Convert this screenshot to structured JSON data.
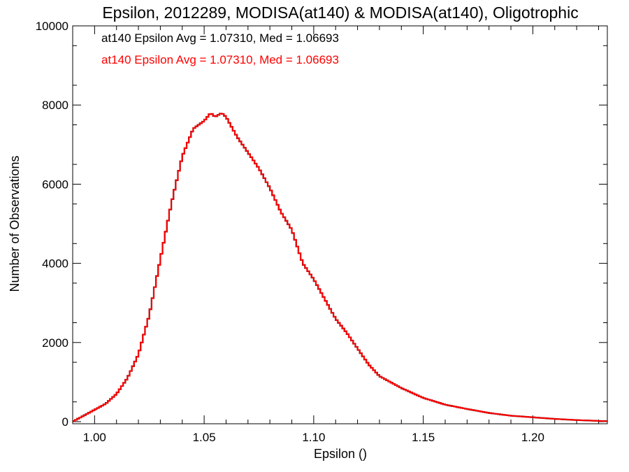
{
  "chart_data": {
    "type": "line",
    "step": true,
    "title": "Epsilon, 2012289, MODISA(at140) & MODISA(at140), Oligotrophic",
    "xlabel": "Epsilon ()",
    "ylabel": "Number of Observations",
    "xlim": [
      0.99,
      1.234
    ],
    "ylim": [
      0,
      10000
    ],
    "xticks": [
      {
        "value": 1.0,
        "label": "1.00"
      },
      {
        "value": 1.05,
        "label": "1.05"
      },
      {
        "value": 1.1,
        "label": "1.10"
      },
      {
        "value": 1.15,
        "label": "1.15"
      },
      {
        "value": 1.2,
        "label": "1.20"
      }
    ],
    "yticks": [
      {
        "value": 0,
        "label": "0"
      },
      {
        "value": 2000,
        "label": "2000"
      },
      {
        "value": 4000,
        "label": "4000"
      },
      {
        "value": 6000,
        "label": "6000"
      },
      {
        "value": 8000,
        "label": "8000"
      },
      {
        "value": 10000,
        "label": "10000"
      }
    ],
    "annotations": [
      {
        "text": "at140 Epsilon Avg = 1.07310, Med = 1.06693",
        "color": "#000000"
      },
      {
        "text": "at140 Epsilon Avg = 1.07310, Med = 1.06693",
        "color": "#ff0000"
      }
    ],
    "colors": {
      "axes": "#000000",
      "series_back": "#000000",
      "series_front": "#ff0000"
    },
    "series": [
      {
        "color": "#ff0000",
        "x": [
          0.99,
          0.995,
          1.0,
          1.005,
          1.01,
          1.015,
          1.02,
          1.025,
          1.03,
          1.035,
          1.04,
          1.045,
          1.05,
          1.053,
          1.055,
          1.058,
          1.06,
          1.065,
          1.07,
          1.075,
          1.08,
          1.085,
          1.09,
          1.095,
          1.1,
          1.105,
          1.11,
          1.115,
          1.12,
          1.125,
          1.13,
          1.14,
          1.15,
          1.16,
          1.17,
          1.18,
          1.19,
          1.2,
          1.21,
          1.22,
          1.234
        ],
        "y": [
          0,
          150,
          300,
          450,
          700,
          1100,
          1700,
          2700,
          4100,
          5500,
          6700,
          7400,
          7600,
          7800,
          7700,
          7800,
          7700,
          7200,
          6800,
          6400,
          5900,
          5300,
          4850,
          4000,
          3600,
          3100,
          2600,
          2250,
          1850,
          1450,
          1150,
          850,
          600,
          430,
          320,
          220,
          150,
          110,
          70,
          40,
          10
        ]
      }
    ]
  }
}
